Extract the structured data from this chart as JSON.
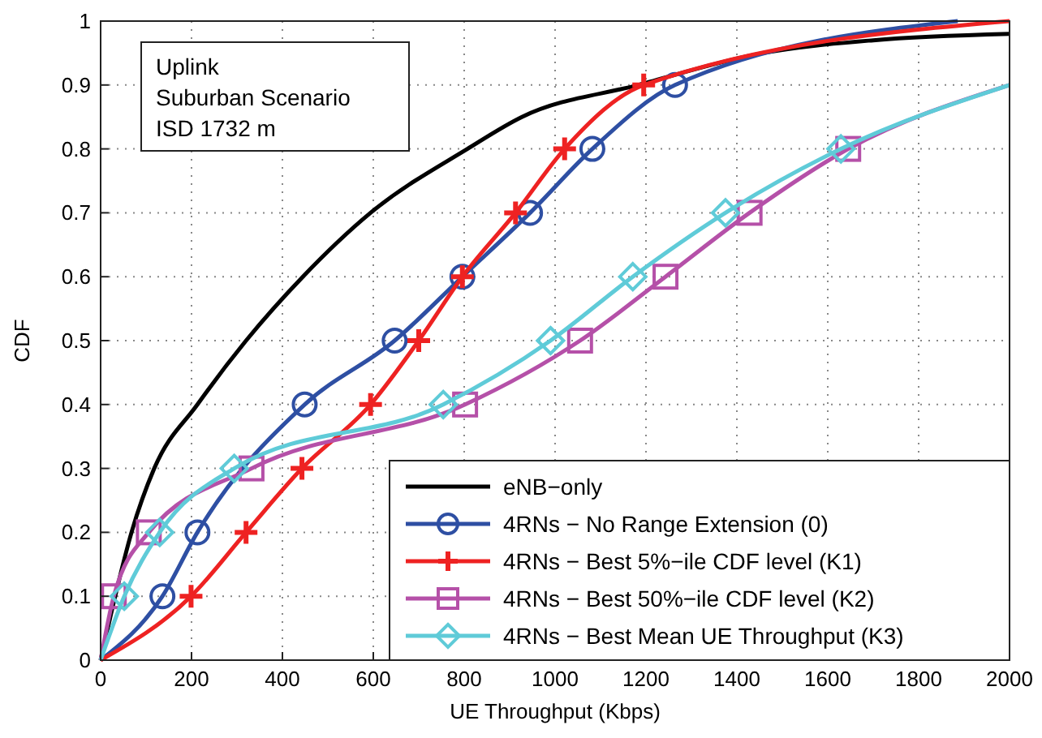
{
  "chart_data": {
    "type": "line",
    "xlabel": "UE Throughput (Kbps)",
    "ylabel": "CDF",
    "xlim": [
      0,
      2000
    ],
    "xticks": [
      0,
      200,
      400,
      600,
      800,
      1000,
      1200,
      1400,
      1600,
      1800,
      2000
    ],
    "ylim": [
      0,
      1
    ],
    "yticks": [
      0,
      0.1,
      0.2,
      0.3,
      0.4,
      0.5,
      0.6,
      0.7,
      0.8,
      0.9,
      1
    ],
    "grid": true,
    "legend": "bottom right",
    "line_style": "solid",
    "annotations": [
      "Uplink",
      "Suburban Scenario",
      "ISD 1732 m"
    ],
    "series": [
      {
        "name": "eNB−only",
        "color": "#000000",
        "marker": "none",
        "x": [
          0,
          32,
          68,
          118,
          213,
          320,
          445,
          594,
          807,
          927,
          1183,
          1457,
          1700,
          2000
        ],
        "values": [
          0,
          0.1,
          0.2,
          0.3,
          0.4,
          0.5,
          0.6,
          0.7,
          0.8,
          0.85,
          0.9,
          0.95,
          0.97,
          0.98
        ]
      },
      {
        "name": "4RNs − No Range Extension (0)",
        "color": "#2e4fa3",
        "marker": "circle",
        "x": [
          0,
          136,
          213,
          290,
          449,
          647,
          796,
          945,
          1082,
          1264,
          1886
        ],
        "values": [
          0,
          0.1,
          0.2,
          null,
          0.4,
          0.5,
          0.6,
          0.7,
          0.8,
          0.9,
          1
        ]
      },
      {
        "name": "4RNs − Best 5%−ile CDF level (K1)",
        "color": "#ee2222",
        "marker": "cross",
        "x": [
          0,
          199,
          320,
          443,
          594,
          700,
          796,
          913,
          1021,
          1195,
          2000
        ],
        "values": [
          0,
          0.1,
          0.2,
          0.3,
          0.4,
          0.5,
          0.6,
          0.7,
          0.8,
          0.9,
          1
        ]
      },
      {
        "name": "4RNs − Best 50%−ile CDF level (K2)",
        "color": "#b550a8",
        "marker": "square",
        "x": [
          0,
          29,
          106,
          332,
          802,
          1055,
          1243,
          1428,
          1645,
          2000
        ],
        "values": [
          0,
          0.1,
          0.2,
          0.3,
          0.4,
          0.5,
          0.6,
          0.7,
          0.8,
          0.9
        ]
      },
      {
        "name": "4RNs − Best Mean UE Throughput (K3)",
        "color": "#5fcbd8",
        "marker": "diamond",
        "x": [
          0,
          52,
          130,
          294,
          754,
          990,
          1171,
          1375,
          1629,
          2000
        ],
        "values": [
          0,
          0.1,
          0.2,
          0.3,
          0.4,
          0.5,
          0.6,
          0.7,
          0.8,
          0.9
        ]
      }
    ]
  }
}
